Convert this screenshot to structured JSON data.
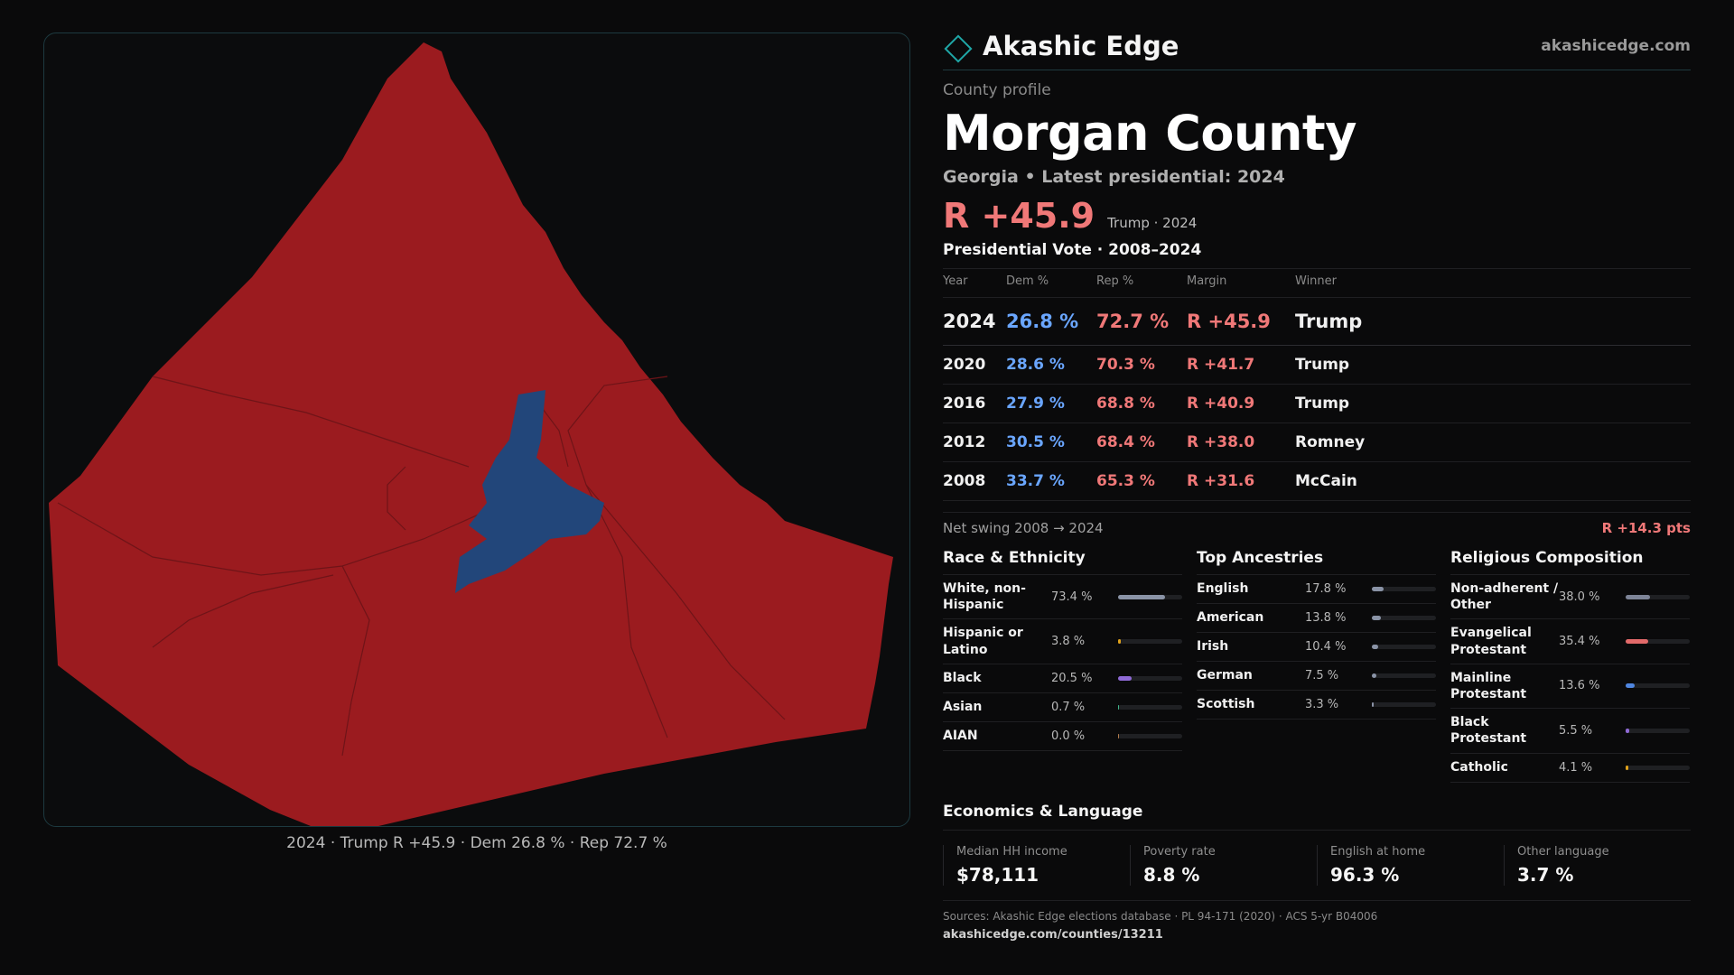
{
  "brand": {
    "name": "Akashic Edge",
    "url": "akashicedge.com",
    "accent": "#1fa7a7"
  },
  "profile": {
    "eyebrow": "County profile",
    "title": "Morgan County",
    "subtitle": "Georgia • Latest presidential: 2024",
    "margin": "R +45.9",
    "margin_note": "Trump · 2024"
  },
  "map": {
    "caption": "2024 · Trump R +45.9 · Dem 26.8 % · Rep 72.7 %",
    "rep_color": "#9b1b1f",
    "dem_color": "#22467a"
  },
  "vote_table": {
    "title": "Presidential Vote · 2008–2024",
    "headers": [
      "Year",
      "Dem %",
      "Rep %",
      "Margin",
      "Winner"
    ],
    "rows": [
      {
        "year": "2024",
        "dem": "26.8 %",
        "rep": "72.7 %",
        "margin": "R +45.9",
        "winner": "Trump"
      },
      {
        "year": "2020",
        "dem": "28.6 %",
        "rep": "70.3 %",
        "margin": "R +41.7",
        "winner": "Trump"
      },
      {
        "year": "2016",
        "dem": "27.9 %",
        "rep": "68.8 %",
        "margin": "R +40.9",
        "winner": "Trump"
      },
      {
        "year": "2012",
        "dem": "30.5 %",
        "rep": "68.4 %",
        "margin": "R +38.0",
        "winner": "Romney"
      },
      {
        "year": "2008",
        "dem": "33.7 %",
        "rep": "65.3 %",
        "margin": "R +31.6",
        "winner": "McCain"
      }
    ],
    "swing_label": "Net swing 2008 → 2024",
    "swing_value": "R +14.3 pts"
  },
  "race": {
    "title": "Race & Ethnicity",
    "items": [
      {
        "label": "White, non-Hispanic",
        "value": "73.4 %",
        "pct": 73.4,
        "color": "#8a93a6"
      },
      {
        "label": "Hispanic or Latino",
        "value": "3.8 %",
        "pct": 3.8,
        "color": "#e0a21b"
      },
      {
        "label": "Black",
        "value": "20.5 %",
        "pct": 20.5,
        "color": "#8f6ad6"
      },
      {
        "label": "Asian",
        "value": "0.7 %",
        "pct": 0.7,
        "color": "#3fb58a"
      },
      {
        "label": "AIAN",
        "value": "0.0 %",
        "pct": 0.0,
        "color": "#b07a4a"
      }
    ]
  },
  "ancestry": {
    "title": "Top Ancestries",
    "items": [
      {
        "label": "English",
        "value": "17.8 %",
        "pct": 17.8,
        "color": "#8a93a6"
      },
      {
        "label": "American",
        "value": "13.8 %",
        "pct": 13.8,
        "color": "#8a93a6"
      },
      {
        "label": "Irish",
        "value": "10.4 %",
        "pct": 10.4,
        "color": "#8a93a6"
      },
      {
        "label": "German",
        "value": "7.5 %",
        "pct": 7.5,
        "color": "#8a93a6"
      },
      {
        "label": "Scottish",
        "value": "3.3 %",
        "pct": 3.3,
        "color": "#8a93a6"
      }
    ]
  },
  "religion": {
    "title": "Religious Composition",
    "items": [
      {
        "label": "Non-adherent / Other",
        "value": "38.0 %",
        "pct": 38.0,
        "color": "#7d8497"
      },
      {
        "label": "Evangelical Protestant",
        "value": "35.4 %",
        "pct": 35.4,
        "color": "#e36a6a"
      },
      {
        "label": "Mainline Protestant",
        "value": "13.6 %",
        "pct": 13.6,
        "color": "#4f86e0"
      },
      {
        "label": "Black Protestant",
        "value": "5.5 %",
        "pct": 5.5,
        "color": "#8f6ad6"
      },
      {
        "label": "Catholic",
        "value": "4.1 %",
        "pct": 4.1,
        "color": "#e0a21b"
      }
    ]
  },
  "economics": {
    "title": "Economics & Language",
    "items": [
      {
        "label": "Median HH income",
        "value": "$78,111"
      },
      {
        "label": "Poverty rate",
        "value": "8.8 %"
      },
      {
        "label": "English at home",
        "value": "96.3 %"
      },
      {
        "label": "Other language",
        "value": "3.7 %"
      }
    ]
  },
  "sources": {
    "text": "Sources: Akashic Edge elections database · PL 94-171 (2020) · ACS 5-yr B04006",
    "url": "akashicedge.com/counties/13211"
  }
}
